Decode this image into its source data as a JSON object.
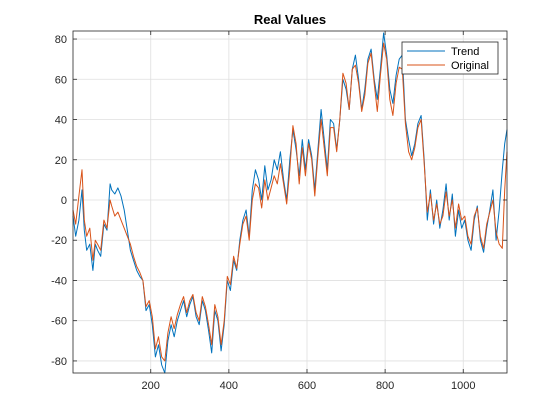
{
  "chart_data": {
    "type": "line",
    "title": "Real Values",
    "xlabel": "",
    "ylabel": "",
    "xlim": [
      1,
      1112
    ],
    "ylim": [
      -86,
      84
    ],
    "xticks": [
      200,
      400,
      600,
      800,
      1000
    ],
    "yticks": [
      -80,
      -60,
      -40,
      -20,
      0,
      20,
      40,
      60,
      80
    ],
    "grid": true,
    "legend_position": "top-right",
    "series": [
      {
        "name": "Trend",
        "color": "#0072BD",
        "x": [
          1,
          8,
          16,
          24,
          30,
          36,
          44,
          52,
          58,
          64,
          72,
          80,
          88,
          96,
          100,
          108,
          116,
          124,
          132,
          140,
          148,
          156,
          164,
          172,
          180,
          188,
          196,
          204,
          212,
          220,
          228,
          236,
          244,
          252,
          260,
          268,
          276,
          284,
          292,
          300,
          308,
          316,
          324,
          332,
          340,
          348,
          356,
          364,
          372,
          380,
          388,
          396,
          404,
          412,
          420,
          428,
          436,
          444,
          452,
          460,
          468,
          476,
          484,
          492,
          500,
          508,
          516,
          524,
          532,
          540,
          548,
          556,
          564,
          572,
          580,
          588,
          596,
          604,
          612,
          620,
          628,
          636,
          644,
          652,
          660,
          668,
          676,
          684,
          692,
          700,
          708,
          716,
          724,
          732,
          740,
          748,
          756,
          764,
          772,
          780,
          788,
          796,
          804,
          812,
          820,
          828,
          836,
          844,
          852,
          860,
          868,
          876,
          884,
          892,
          900,
          908,
          916,
          924,
          932,
          940,
          948,
          956,
          964,
          972,
          980,
          988,
          996,
          1004,
          1012,
          1020,
          1028,
          1036,
          1044,
          1052,
          1060,
          1068,
          1076,
          1084,
          1092,
          1100,
          1106,
          1112
        ],
        "values": [
          -8,
          -18,
          -10,
          5,
          -15,
          -25,
          -22,
          -35,
          -22,
          -25,
          -28,
          -12,
          -15,
          8,
          5,
          3,
          6,
          2,
          -5,
          -15,
          -25,
          -30,
          -35,
          -38,
          -40,
          -55,
          -52,
          -62,
          -78,
          -72,
          -82,
          -86,
          -70,
          -62,
          -68,
          -60,
          -55,
          -50,
          -58,
          -52,
          -48,
          -58,
          -62,
          -50,
          -55,
          -65,
          -76,
          -55,
          -60,
          -75,
          -62,
          -40,
          -45,
          -30,
          -35,
          -20,
          -10,
          -5,
          -18,
          5,
          15,
          10,
          0,
          17,
          5,
          10,
          20,
          15,
          24,
          10,
          0,
          20,
          35,
          25,
          12,
          30,
          15,
          30,
          22,
          5,
          25,
          45,
          30,
          15,
          40,
          38,
          25,
          40,
          60,
          55,
          45,
          65,
          72,
          60,
          45,
          55,
          70,
          75,
          60,
          50,
          65,
          83,
          72,
          55,
          48,
          62,
          70,
          72,
          40,
          30,
          22,
          28,
          38,
          42,
          20,
          -10,
          5,
          -12,
          0,
          -14,
          -5,
          8,
          -10,
          3,
          -18,
          -5,
          -14,
          -10,
          -20,
          -25,
          -10,
          -3,
          -20,
          -26,
          -14,
          -5,
          5,
          -20,
          -5,
          15,
          28,
          35
        ]
      },
      {
        "name": "Original",
        "color": "#D95319",
        "x": [
          1,
          8,
          16,
          24,
          30,
          36,
          44,
          52,
          58,
          64,
          72,
          80,
          88,
          96,
          100,
          108,
          116,
          124,
          132,
          140,
          148,
          156,
          164,
          172,
          180,
          188,
          196,
          204,
          212,
          220,
          228,
          236,
          244,
          252,
          260,
          268,
          276,
          284,
          292,
          300,
          308,
          316,
          324,
          332,
          340,
          348,
          356,
          364,
          372,
          380,
          388,
          396,
          404,
          412,
          420,
          428,
          436,
          444,
          452,
          460,
          468,
          476,
          484,
          492,
          500,
          508,
          516,
          524,
          532,
          540,
          548,
          556,
          564,
          572,
          580,
          588,
          596,
          604,
          612,
          620,
          628,
          636,
          644,
          652,
          660,
          668,
          676,
          684,
          692,
          700,
          708,
          716,
          724,
          732,
          740,
          748,
          756,
          764,
          772,
          780,
          788,
          796,
          804,
          812,
          820,
          828,
          836,
          844,
          852,
          860,
          868,
          876,
          884,
          892,
          900,
          908,
          916,
          924,
          932,
          940,
          948,
          956,
          964,
          972,
          980,
          988,
          996,
          1004,
          1012,
          1020,
          1028,
          1036,
          1044,
          1052,
          1060,
          1068,
          1076,
          1084,
          1092,
          1100,
          1106,
          1112
        ],
        "values": [
          -5,
          -12,
          2,
          15,
          -10,
          -18,
          -14,
          -30,
          -20,
          -22,
          -25,
          -10,
          -14,
          0,
          -3,
          -8,
          -6,
          -10,
          -14,
          -18,
          -22,
          -28,
          -33,
          -36,
          -40,
          -53,
          -50,
          -58,
          -74,
          -68,
          -78,
          -80,
          -66,
          -58,
          -64,
          -57,
          -52,
          -48,
          -56,
          -50,
          -47,
          -56,
          -60,
          -48,
          -53,
          -62,
          -72,
          -52,
          -58,
          -72,
          -60,
          -38,
          -42,
          -28,
          -34,
          -22,
          -12,
          -8,
          -20,
          0,
          8,
          6,
          -4,
          10,
          0,
          6,
          12,
          8,
          18,
          8,
          -2,
          15,
          37,
          28,
          8,
          26,
          12,
          28,
          20,
          2,
          22,
          40,
          26,
          12,
          36,
          36,
          24,
          40,
          63,
          58,
          45,
          65,
          67,
          58,
          44,
          52,
          68,
          73,
          58,
          44,
          62,
          78,
          70,
          50,
          42,
          58,
          66,
          65,
          38,
          24,
          20,
          26,
          36,
          40,
          18,
          -6,
          3,
          -10,
          -2,
          -12,
          -8,
          4,
          -8,
          0,
          -14,
          -2,
          -10,
          -8,
          -18,
          -22,
          -8,
          -4,
          -18,
          -24,
          -12,
          -6,
          0,
          -16,
          -22,
          -24,
          5,
          24
        ]
      }
    ]
  }
}
